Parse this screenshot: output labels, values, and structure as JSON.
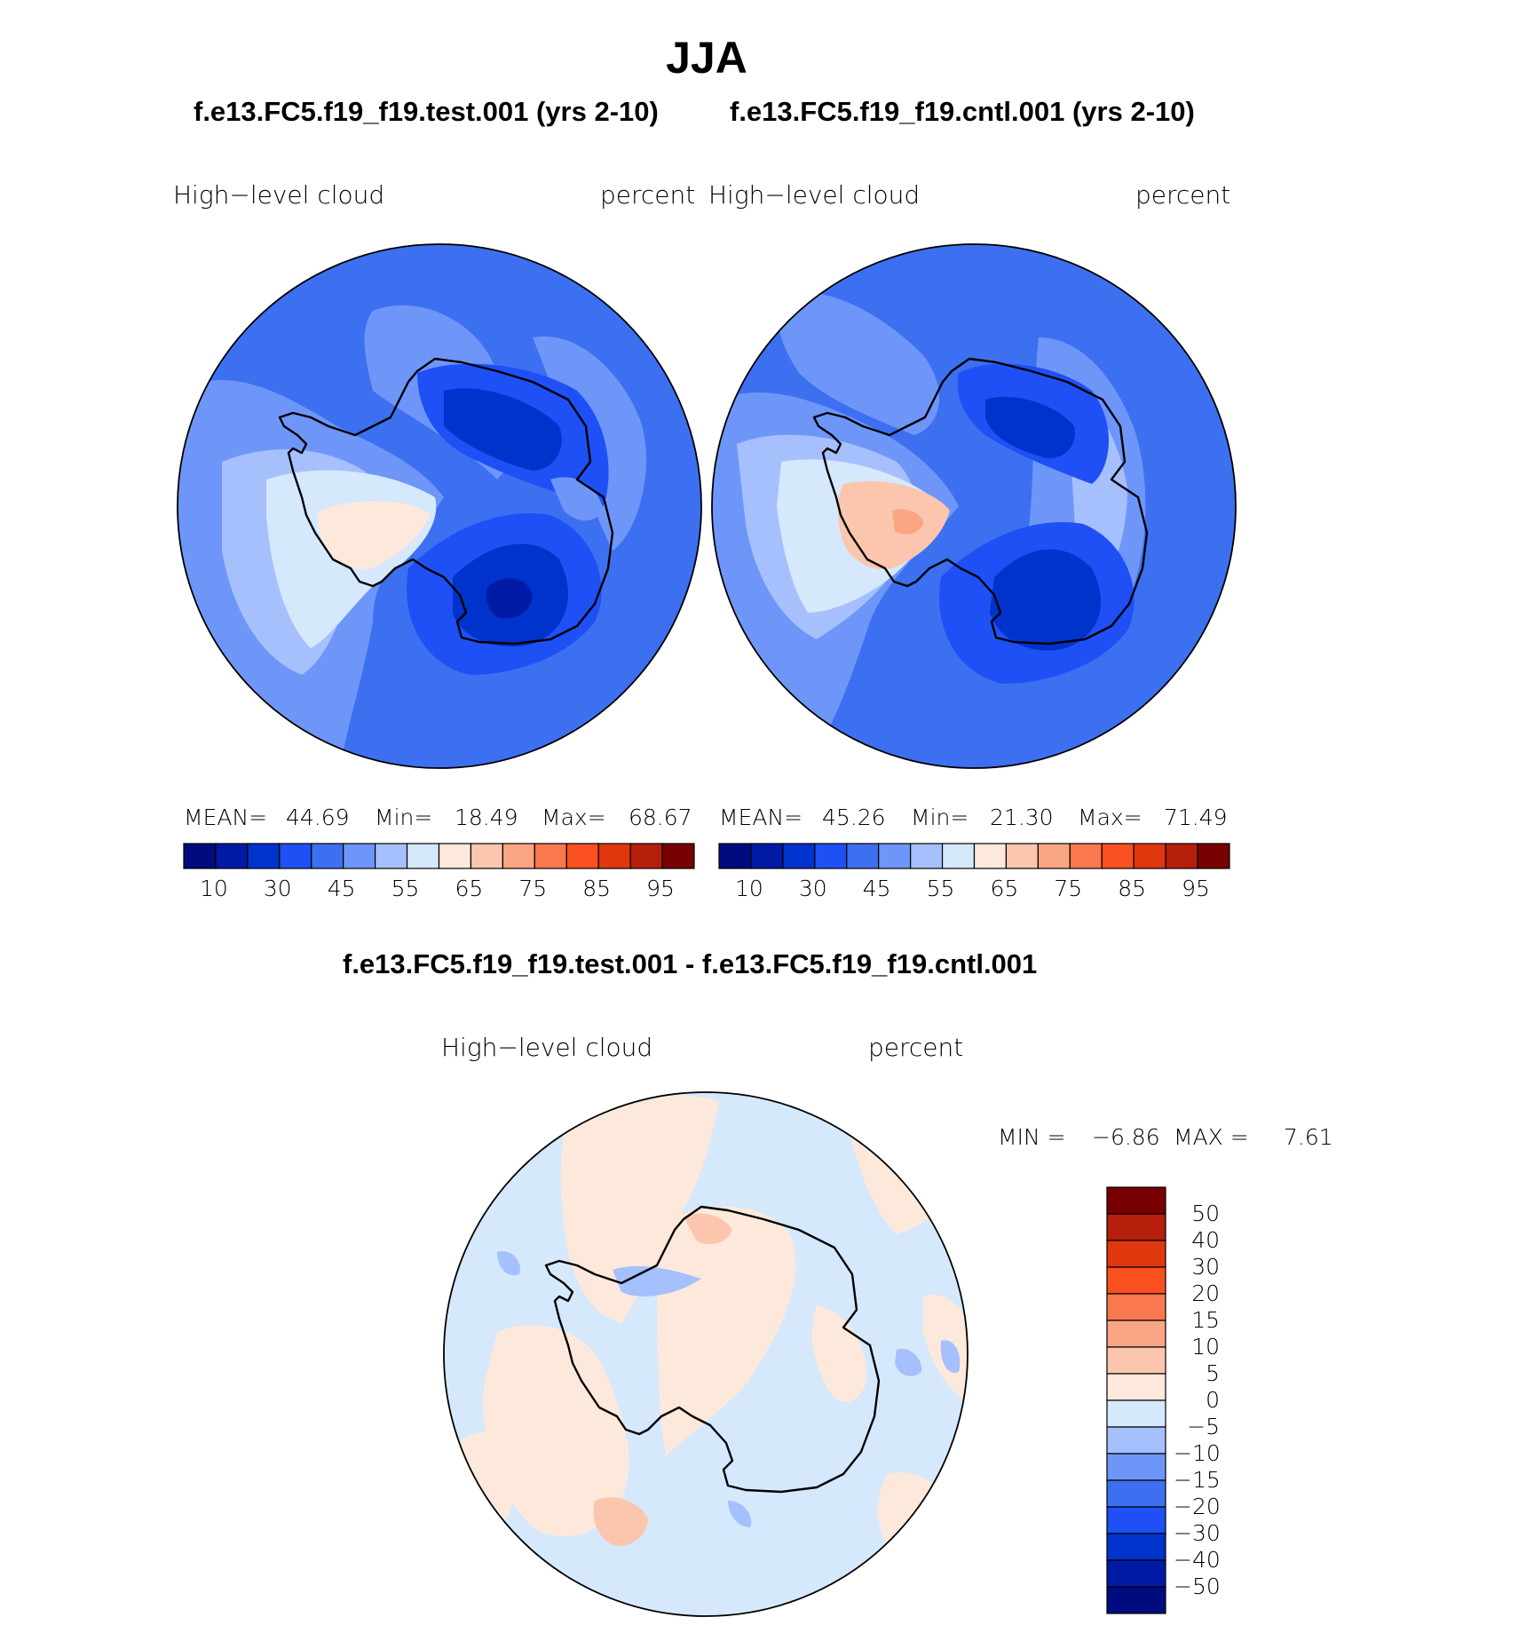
{
  "figure": {
    "title": "JJA",
    "diff_title": "f.e13.FC5.f19_f19.test.001 - f.e13.FC5.f19_f19.cntl.001"
  },
  "panels": [
    {
      "case_title": "f.e13.FC5.f19_f19.test.001 (yrs 2-10)",
      "variable": "High−level  cloud",
      "units": "percent",
      "stats": {
        "mean_label": "MEAN=",
        "mean": "44.69",
        "min_label": "Min=",
        "min": "18.49",
        "max_label": "Max=",
        "max": "68.67"
      }
    },
    {
      "case_title": "f.e13.FC5.f19_f19.cntl.001 (yrs 2-10)",
      "variable": "High−level  cloud",
      "units": "percent",
      "stats": {
        "mean_label": "MEAN=",
        "mean": "45.26",
        "min_label": "Min=",
        "min": "21.30",
        "max_label": "Max=",
        "max": "71.49"
      }
    },
    {
      "variable": "High−level  cloud",
      "units": "percent",
      "stats": {
        "min_label": "MIN =",
        "min": "−6.86",
        "max_label": "MAX =",
        "max": "7.61"
      }
    }
  ],
  "colorbar_main": {
    "colors": [
      "#000c7d",
      "#001aa5",
      "#0033cc",
      "#1e50f5",
      "#3c70f0",
      "#6e96f8",
      "#a5c0fc",
      "#d6e8fc",
      "#fde9dc",
      "#fcc6ae",
      "#faa583",
      "#fa7850",
      "#fa5020",
      "#e1370f",
      "#b41e0a",
      "#780000"
    ],
    "labels": [
      "10",
      "30",
      "45",
      "55",
      "65",
      "75",
      "85",
      "95"
    ]
  },
  "colorbar_diff": {
    "colors": [
      "#780000",
      "#b41e0a",
      "#e1370f",
      "#fa5020",
      "#fa7850",
      "#faa583",
      "#fcc6ae",
      "#fde9dc",
      "#d6e8fc",
      "#a5c0fc",
      "#6e96f8",
      "#3c70f0",
      "#1e50f5",
      "#0033cc",
      "#001aa5",
      "#000c7d"
    ],
    "labels": [
      "50",
      "40",
      "30",
      "20",
      "15",
      "10",
      "5",
      "0",
      "−5",
      "−10",
      "−15",
      "−20",
      "−30",
      "−40",
      "−50"
    ]
  }
}
